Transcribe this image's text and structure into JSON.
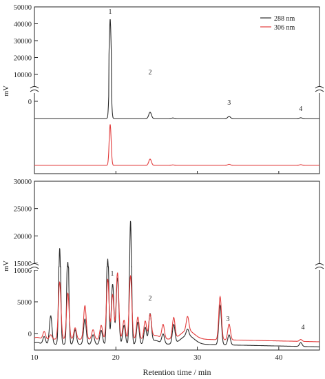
{
  "chart_data": [
    {
      "type": "line",
      "panel": "top",
      "y_unit_label": "mV",
      "axis_break": true,
      "yticks_upper": [
        10000,
        20000,
        30000,
        40000,
        50000
      ],
      "yticks_lower": [
        0
      ],
      "ylim_upper": [
        5000,
        50000
      ],
      "legend": {
        "position": "top-right",
        "entries": [
          "288 nm",
          "306 nm"
        ]
      },
      "peak_labels": [
        {
          "text": "1",
          "x": 19.3
        },
        {
          "text": "2",
          "x": 24.2
        },
        {
          "text": "3",
          "x": 33.9
        },
        {
          "text": "4",
          "x": 42.7
        }
      ],
      "xlim": [
        10,
        45
      ],
      "series": [
        {
          "name": "288 nm",
          "color": "#2b2b2b",
          "baseline": 0,
          "peaks": [
            {
              "x": 19.3,
              "height": 43000
            },
            {
              "x": 24.2,
              "height": 4000
            },
            {
              "x": 27.0,
              "height": 350
            },
            {
              "x": 33.9,
              "height": 1300
            },
            {
              "x": 42.7,
              "height": 450
            }
          ]
        },
        {
          "name": "306 nm",
          "color": "#e23b3b",
          "baseline": 0,
          "peaks": [
            {
              "x": 19.3,
              "height": 26000
            },
            {
              "x": 24.2,
              "height": 4000
            },
            {
              "x": 27.0,
              "height": 300
            },
            {
              "x": 33.9,
              "height": 700
            },
            {
              "x": 42.7,
              "height": 450
            }
          ]
        }
      ]
    },
    {
      "type": "line",
      "panel": "bottom",
      "y_unit_label": "mV",
      "axis_break": true,
      "yticks_upper": [
        15000,
        20000,
        25000,
        30000
      ],
      "yticks_lower": [
        0,
        5000,
        10000
      ],
      "ylim_upper": [
        15000,
        30000
      ],
      "ylim_lower": [
        -1800,
        10800
      ],
      "xlabel": "Retention time / min",
      "xticks": [
        10,
        20,
        30,
        40
      ],
      "xlim": [
        10,
        45
      ],
      "peak_labels": [
        {
          "text": "1",
          "x": 19.6
        },
        {
          "text": "2",
          "x": 24.2
        },
        {
          "text": "3",
          "x": 33.9
        },
        {
          "text": "4",
          "x": 42.7
        }
      ],
      "series": [
        {
          "name": "288 nm",
          "color": "#2b2b2b",
          "baseline": -1700,
          "peaks": [
            {
              "x": 11.2,
              "height": 1200
            },
            {
              "x": 12.0,
              "height": 4500
            },
            {
              "x": 13.1,
              "height": 19500
            },
            {
              "x": 14.1,
              "height": 17000
            },
            {
              "x": 15.0,
              "height": 2300
            },
            {
              "x": 16.2,
              "height": 4000
            },
            {
              "x": 17.2,
              "height": 1500
            },
            {
              "x": 18.2,
              "height": 2200
            },
            {
              "x": 19.0,
              "height": 17500
            },
            {
              "x": 19.6,
              "height": 9500
            },
            {
              "x": 20.2,
              "height": 10500
            },
            {
              "x": 21.0,
              "height": 3000
            },
            {
              "x": 21.8,
              "height": 24500
            },
            {
              "x": 22.7,
              "height": 3500
            },
            {
              "x": 23.6,
              "height": 2600
            },
            {
              "x": 24.2,
              "height": 4500
            },
            {
              "x": 25.8,
              "height": 1500
            },
            {
              "x": 27.1,
              "height": 3000
            },
            {
              "x": 28.8,
              "height": 1000
            },
            {
              "x": 32.8,
              "height": 6200
            },
            {
              "x": 33.9,
              "height": 1600
            },
            {
              "x": 42.7,
              "height": 600
            }
          ]
        },
        {
          "name": "306 nm",
          "color": "#e23b3b",
          "baseline": -900,
          "peaks": [
            {
              "x": 11.2,
              "height": 1200
            },
            {
              "x": 12.0,
              "height": 700
            },
            {
              "x": 13.1,
              "height": 9000
            },
            {
              "x": 14.1,
              "height": 7300
            },
            {
              "x": 15.0,
              "height": 1800
            },
            {
              "x": 16.2,
              "height": 5300
            },
            {
              "x": 17.2,
              "height": 1500
            },
            {
              "x": 18.2,
              "height": 2200
            },
            {
              "x": 19.0,
              "height": 9500
            },
            {
              "x": 19.6,
              "height": 7000
            },
            {
              "x": 20.2,
              "height": 10500
            },
            {
              "x": 21.0,
              "height": 3000
            },
            {
              "x": 21.8,
              "height": 10000
            },
            {
              "x": 22.7,
              "height": 3500
            },
            {
              "x": 23.6,
              "height": 2800
            },
            {
              "x": 24.2,
              "height": 3600
            },
            {
              "x": 25.8,
              "height": 2200
            },
            {
              "x": 27.1,
              "height": 3300
            },
            {
              "x": 28.8,
              "height": 2200
            },
            {
              "x": 32.8,
              "height": 6800
            },
            {
              "x": 33.9,
              "height": 2500
            },
            {
              "x": 42.7,
              "height": 300
            }
          ]
        }
      ]
    }
  ]
}
